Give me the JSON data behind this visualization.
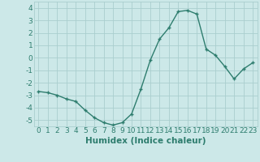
{
  "x": [
    0,
    1,
    2,
    3,
    4,
    5,
    6,
    7,
    8,
    9,
    10,
    11,
    12,
    13,
    14,
    15,
    16,
    17,
    18,
    19,
    20,
    21,
    22,
    23
  ],
  "y": [
    -2.7,
    -2.8,
    -3.0,
    -3.3,
    -3.5,
    -4.2,
    -4.8,
    -5.2,
    -5.4,
    -5.2,
    -4.5,
    -2.5,
    -0.2,
    1.5,
    2.4,
    3.7,
    3.8,
    3.5,
    0.7,
    0.2,
    -0.7,
    -1.7,
    -0.9,
    -0.4
  ],
  "line_color": "#2e7d6e",
  "marker": "+",
  "marker_size": 3,
  "marker_linewidth": 1.0,
  "line_width": 1.0,
  "xlabel": "Humidex (Indice chaleur)",
  "xlim": [
    -0.5,
    23.5
  ],
  "ylim": [
    -5.5,
    4.5
  ],
  "yticks": [
    -5,
    -4,
    -3,
    -2,
    -1,
    0,
    1,
    2,
    3,
    4
  ],
  "xticks": [
    0,
    1,
    2,
    3,
    4,
    5,
    6,
    7,
    8,
    9,
    10,
    11,
    12,
    13,
    14,
    15,
    16,
    17,
    18,
    19,
    20,
    21,
    22,
    23
  ],
  "bg_color": "#cce8e8",
  "grid_color": "#aacece",
  "text_color": "#2e7d6e",
  "tick_fontsize": 6.5,
  "xlabel_fontsize": 7.5
}
